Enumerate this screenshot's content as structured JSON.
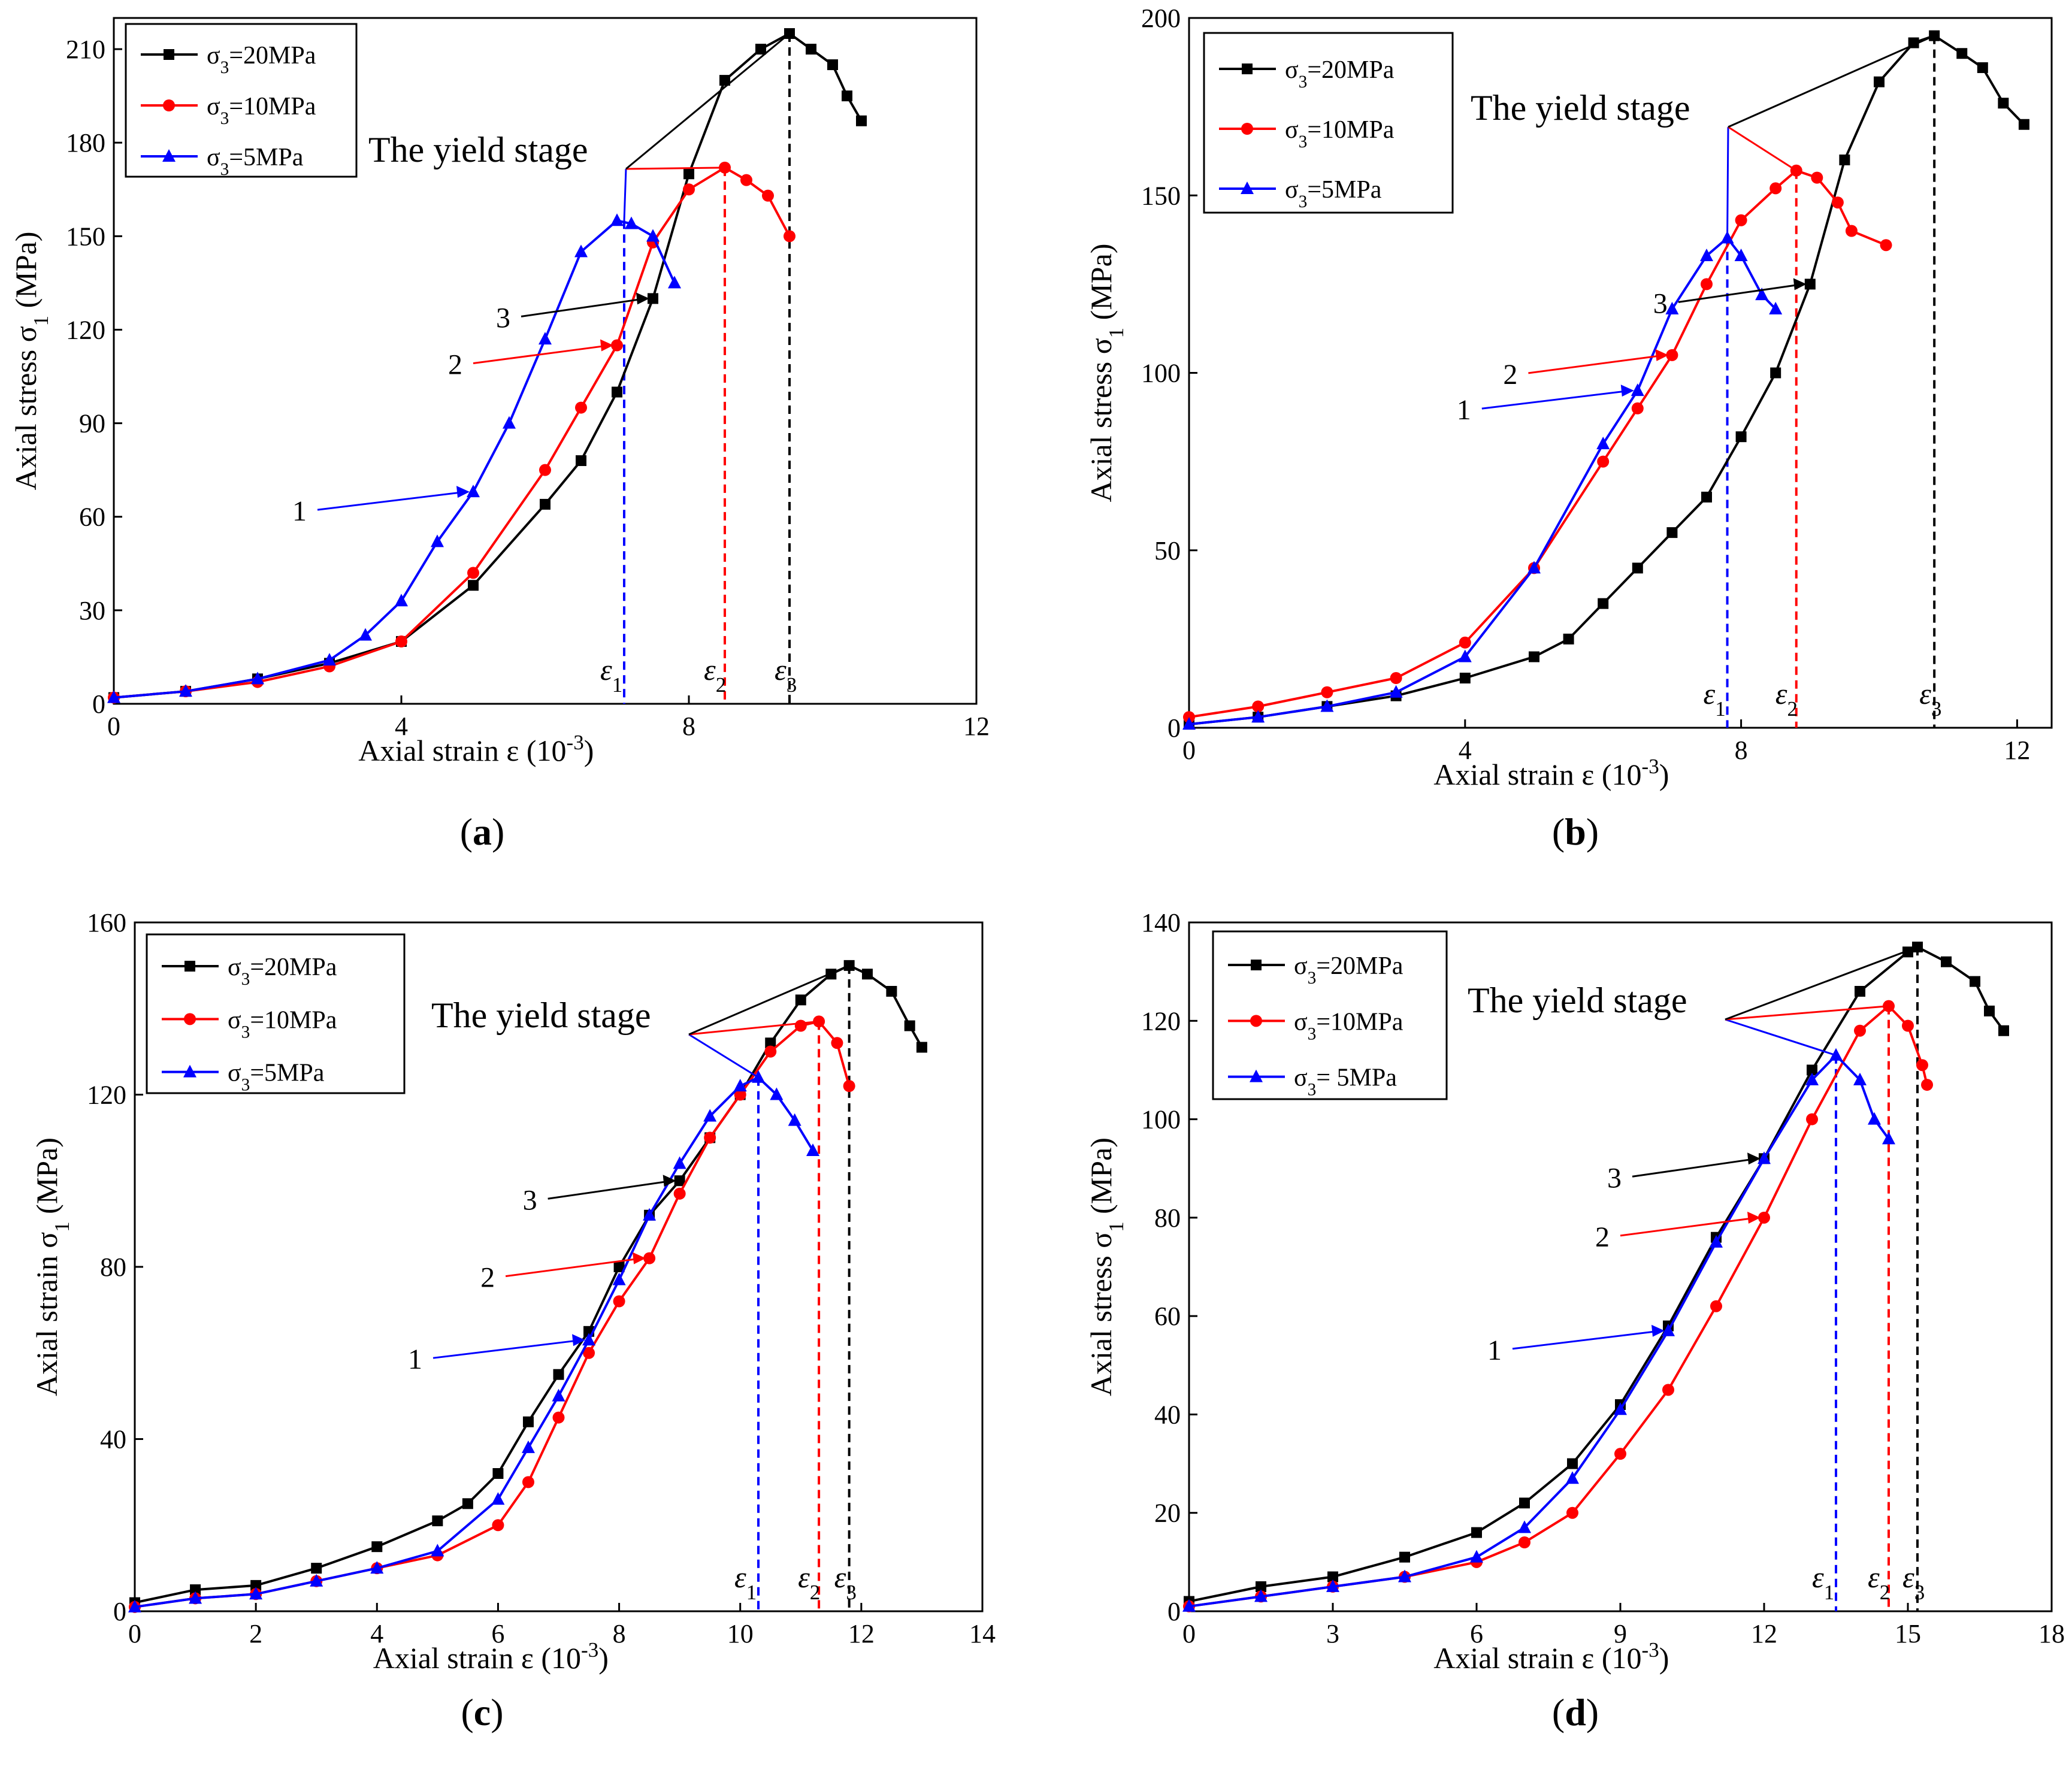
{
  "series_styles": [
    {
      "name_key": "s20",
      "color": "#000000",
      "marker": "square"
    },
    {
      "name_key": "s10",
      "color": "#ff0000",
      "marker": "circle"
    },
    {
      "name_key": "s5",
      "color": "#0000ff",
      "marker": "triangle"
    }
  ],
  "chart_data": [
    {
      "type": "line",
      "panel_label": "(a)",
      "ylabel": "Axial stress σ1 (MPa)",
      "xlabel": "Axial strain ε (10⁻³)",
      "xlim": [
        0,
        12
      ],
      "ylim": [
        0,
        220
      ],
      "xticks": [
        0,
        4,
        8,
        12
      ],
      "yticks": [
        0,
        30,
        60,
        90,
        120,
        150,
        180,
        210
      ],
      "legend": [
        "σ3=20MPa",
        "σ3=10MPa",
        "σ3=5MPa"
      ],
      "annotation": "The yield stage",
      "labels123": [
        "1",
        "2",
        "3"
      ],
      "eps_labels": [
        "ε1",
        "ε2",
        "ε3"
      ],
      "eps_values": [
        7.1,
        8.5,
        9.4
      ],
      "eps_peaks": [
        155,
        172,
        215
      ],
      "label_pos": {
        "y1": 68,
        "y2": 97,
        "y3": 127
      },
      "series": [
        {
          "name": "σ3=20MPa",
          "points": [
            [
              0,
              2
            ],
            [
              1,
              4
            ],
            [
              2,
              8
            ],
            [
              3,
              13
            ],
            [
              4,
              20
            ],
            [
              5,
              38
            ],
            [
              6,
              64
            ],
            [
              6.5,
              78
            ],
            [
              7,
              100
            ],
            [
              7.5,
              130
            ],
            [
              8,
              170
            ],
            [
              8.5,
              200
            ],
            [
              9,
              210
            ],
            [
              9.4,
              215
            ],
            [
              9.7,
              210
            ],
            [
              10,
              205
            ],
            [
              10.2,
              195
            ],
            [
              10.4,
              187
            ]
          ]
        },
        {
          "name": "σ3=10MPa",
          "points": [
            [
              0,
              2
            ],
            [
              1,
              4
            ],
            [
              2,
              7
            ],
            [
              3,
              12
            ],
            [
              4,
              20
            ],
            [
              5,
              42
            ],
            [
              6,
              75
            ],
            [
              6.5,
              95
            ],
            [
              7,
              115
            ],
            [
              7.5,
              148
            ],
            [
              8,
              165
            ],
            [
              8.5,
              172
            ],
            [
              8.8,
              168
            ],
            [
              9.1,
              163
            ],
            [
              9.4,
              150
            ]
          ]
        },
        {
          "name": "σ3=5MPa",
          "points": [
            [
              0,
              2
            ],
            [
              1,
              4
            ],
            [
              2,
              8
            ],
            [
              3,
              14
            ],
            [
              3.5,
              22
            ],
            [
              4,
              33
            ],
            [
              4.5,
              52
            ],
            [
              5,
              68
            ],
            [
              5.5,
              90
            ],
            [
              6,
              117
            ],
            [
              6.5,
              145
            ],
            [
              7,
              155
            ],
            [
              7.2,
              154
            ],
            [
              7.5,
              150
            ],
            [
              7.8,
              135
            ]
          ]
        }
      ]
    },
    {
      "type": "line",
      "panel_label": "(b)",
      "ylabel": "Axial stress σ1 (MPa)",
      "xlabel": "Axial strain ε (10⁻³)",
      "xlim": [
        0,
        12.5
      ],
      "ylim": [
        0,
        200
      ],
      "xticks": [
        0,
        4,
        8,
        12
      ],
      "yticks": [
        0,
        50,
        100,
        150,
        200
      ],
      "legend": [
        "σ3=20MPa",
        "σ3=10MPa",
        "σ3=5MPa"
      ],
      "annotation": "The yield stage",
      "labels123": [
        "1",
        "2",
        "3"
      ],
      "eps_labels": [
        "ε1",
        "ε2",
        "ε3"
      ],
      "eps_values": [
        7.8,
        8.8,
        10.8
      ],
      "eps_peaks": [
        138,
        157,
        195
      ],
      "label_pos": {
        "y1": 83,
        "y2": 102,
        "y3": 122
      },
      "series": [
        {
          "name": "σ3=20MPa",
          "points": [
            [
              0,
              1
            ],
            [
              1,
              3
            ],
            [
              2,
              6
            ],
            [
              3,
              9
            ],
            [
              4,
              14
            ],
            [
              5,
              20
            ],
            [
              5.5,
              25
            ],
            [
              6,
              35
            ],
            [
              6.5,
              45
            ],
            [
              7,
              55
            ],
            [
              7.5,
              65
            ],
            [
              8,
              82
            ],
            [
              8.5,
              100
            ],
            [
              9,
              125
            ],
            [
              9.5,
              160
            ],
            [
              10,
              182
            ],
            [
              10.5,
              193
            ],
            [
              10.8,
              195
            ],
            [
              11.2,
              190
            ],
            [
              11.5,
              186
            ],
            [
              11.8,
              176
            ],
            [
              12.1,
              170
            ]
          ]
        },
        {
          "name": "σ3=10MPa",
          "points": [
            [
              0,
              3
            ],
            [
              1,
              6
            ],
            [
              2,
              10
            ],
            [
              3,
              14
            ],
            [
              4,
              24
            ],
            [
              5,
              45
            ],
            [
              6,
              75
            ],
            [
              6.5,
              90
            ],
            [
              7,
              105
            ],
            [
              7.5,
              125
            ],
            [
              8,
              143
            ],
            [
              8.5,
              152
            ],
            [
              8.8,
              157
            ],
            [
              9.1,
              155
            ],
            [
              9.4,
              148
            ],
            [
              9.6,
              140
            ],
            [
              10.1,
              136
            ]
          ]
        },
        {
          "name": "σ3=5MPa",
          "points": [
            [
              0,
              1
            ],
            [
              1,
              3
            ],
            [
              2,
              6
            ],
            [
              3,
              10
            ],
            [
              4,
              20
            ],
            [
              5,
              45
            ],
            [
              6,
              80
            ],
            [
              6.5,
              95
            ],
            [
              7,
              118
            ],
            [
              7.5,
              133
            ],
            [
              7.8,
              138
            ],
            [
              8,
              133
            ],
            [
              8.3,
              122
            ],
            [
              8.5,
              118
            ]
          ]
        }
      ]
    },
    {
      "type": "line",
      "panel_label": "(c)",
      "ylabel": "Axial strain σ1 (MPa)",
      "xlabel": "Axial strain ε (10⁻³)",
      "xlim": [
        0,
        14
      ],
      "ylim": [
        0,
        160
      ],
      "xticks": [
        0,
        2,
        4,
        6,
        8,
        10,
        12,
        14
      ],
      "yticks": [
        0,
        40,
        80,
        120,
        160
      ],
      "legend": [
        "σ3=20MPa",
        "σ3=10MPa",
        "σ3=5MPa"
      ],
      "annotation": "The yield stage",
      "labels123": [
        "1",
        "2",
        "3"
      ],
      "eps_labels": [
        "ε1",
        "ε2",
        "ε3"
      ],
      "eps_values": [
        10.3,
        11.3,
        11.8
      ],
      "eps_peaks": [
        124,
        137,
        150
      ],
      "label_pos": {
        "y1": 58,
        "y2": 76,
        "y3": 95
      },
      "series": [
        {
          "name": "σ3=20MPa",
          "points": [
            [
              0,
              2
            ],
            [
              1,
              5
            ],
            [
              2,
              6
            ],
            [
              3,
              10
            ],
            [
              4,
              15
            ],
            [
              5,
              21
            ],
            [
              5.5,
              25
            ],
            [
              6,
              32
            ],
            [
              6.5,
              44
            ],
            [
              7,
              55
            ],
            [
              7.5,
              65
            ],
            [
              8,
              80
            ],
            [
              8.5,
              92
            ],
            [
              9,
              100
            ],
            [
              9.5,
              110
            ],
            [
              10,
              120
            ],
            [
              10.5,
              132
            ],
            [
              11,
              142
            ],
            [
              11.5,
              148
            ],
            [
              11.8,
              150
            ],
            [
              12.1,
              148
            ],
            [
              12.5,
              144
            ],
            [
              12.8,
              136
            ],
            [
              13,
              131
            ]
          ]
        },
        {
          "name": "σ3=10MPa",
          "points": [
            [
              0,
              1
            ],
            [
              1,
              3
            ],
            [
              2,
              4
            ],
            [
              3,
              7
            ],
            [
              4,
              10
            ],
            [
              5,
              13
            ],
            [
              6,
              20
            ],
            [
              6.5,
              30
            ],
            [
              7,
              45
            ],
            [
              7.5,
              60
            ],
            [
              8,
              72
            ],
            [
              8.5,
              82
            ],
            [
              9,
              97
            ],
            [
              9.5,
              110
            ],
            [
              10,
              120
            ],
            [
              10.5,
              130
            ],
            [
              11,
              136
            ],
            [
              11.3,
              137
            ],
            [
              11.6,
              132
            ],
            [
              11.8,
              122
            ]
          ]
        },
        {
          "name": "σ3=5MPa",
          "points": [
            [
              0,
              1
            ],
            [
              1,
              3
            ],
            [
              2,
              4
            ],
            [
              3,
              7
            ],
            [
              4,
              10
            ],
            [
              5,
              14
            ],
            [
              6,
              26
            ],
            [
              6.5,
              38
            ],
            [
              7,
              50
            ],
            [
              7.5,
              63
            ],
            [
              8,
              77
            ],
            [
              8.5,
              92
            ],
            [
              9,
              104
            ],
            [
              9.5,
              115
            ],
            [
              10,
              122
            ],
            [
              10.3,
              124
            ],
            [
              10.6,
              120
            ],
            [
              10.9,
              114
            ],
            [
              11.2,
              107
            ]
          ]
        }
      ]
    },
    {
      "type": "line",
      "panel_label": "(d)",
      "ylabel": "Axial stress σ1 (MPa)",
      "xlabel": "Axial strain ε (10⁻³)",
      "xlim": [
        0,
        18
      ],
      "ylim": [
        0,
        140
      ],
      "xticks": [
        0,
        3,
        6,
        9,
        12,
        15,
        18
      ],
      "yticks": [
        0,
        20,
        40,
        60,
        80,
        100,
        120,
        140
      ],
      "legend": [
        "σ3=20MPa",
        "σ3=10MPa",
        "σ3= 5MPa"
      ],
      "annotation": "The yield stage",
      "labels123": [
        "1",
        "2",
        "3"
      ],
      "eps_labels": [
        "ε1",
        "ε2",
        "ε3"
      ],
      "eps_values": [
        13.5,
        14.6,
        15.2
      ],
      "eps_peaks": [
        113,
        123,
        135
      ],
      "label_pos": {
        "y1": 55,
        "y2": 70,
        "y3": 86
      },
      "series": [
        {
          "name": "σ3=20MPa",
          "points": [
            [
              0,
              2
            ],
            [
              1.5,
              5
            ],
            [
              3,
              7
            ],
            [
              4.5,
              11
            ],
            [
              6,
              16
            ],
            [
              7,
              22
            ],
            [
              8,
              30
            ],
            [
              9,
              42
            ],
            [
              10,
              58
            ],
            [
              11,
              76
            ],
            [
              12,
              92
            ],
            [
              13,
              110
            ],
            [
              14,
              126
            ],
            [
              15,
              134
            ],
            [
              15.2,
              135
            ],
            [
              15.8,
              132
            ],
            [
              16.4,
              128
            ],
            [
              16.7,
              122
            ],
            [
              17,
              118
            ]
          ]
        },
        {
          "name": "σ3=10MPa",
          "points": [
            [
              0,
              1
            ],
            [
              1.5,
              3
            ],
            [
              3,
              5
            ],
            [
              4.5,
              7
            ],
            [
              6,
              10
            ],
            [
              7,
              14
            ],
            [
              8,
              20
            ],
            [
              9,
              32
            ],
            [
              10,
              45
            ],
            [
              11,
              62
            ],
            [
              12,
              80
            ],
            [
              13,
              100
            ],
            [
              14,
              118
            ],
            [
              14.6,
              123
            ],
            [
              15,
              119
            ],
            [
              15.3,
              111
            ],
            [
              15.4,
              107
            ]
          ]
        },
        {
          "name": "σ3=5MPa",
          "points": [
            [
              0,
              1
            ],
            [
              1.5,
              3
            ],
            [
              3,
              5
            ],
            [
              4.5,
              7
            ],
            [
              6,
              11
            ],
            [
              7,
              17
            ],
            [
              8,
              27
            ],
            [
              9,
              41
            ],
            [
              10,
              57
            ],
            [
              11,
              75
            ],
            [
              12,
              92
            ],
            [
              13,
              108
            ],
            [
              13.5,
              113
            ],
            [
              14,
              108
            ],
            [
              14.3,
              100
            ],
            [
              14.6,
              96
            ]
          ]
        }
      ]
    }
  ]
}
